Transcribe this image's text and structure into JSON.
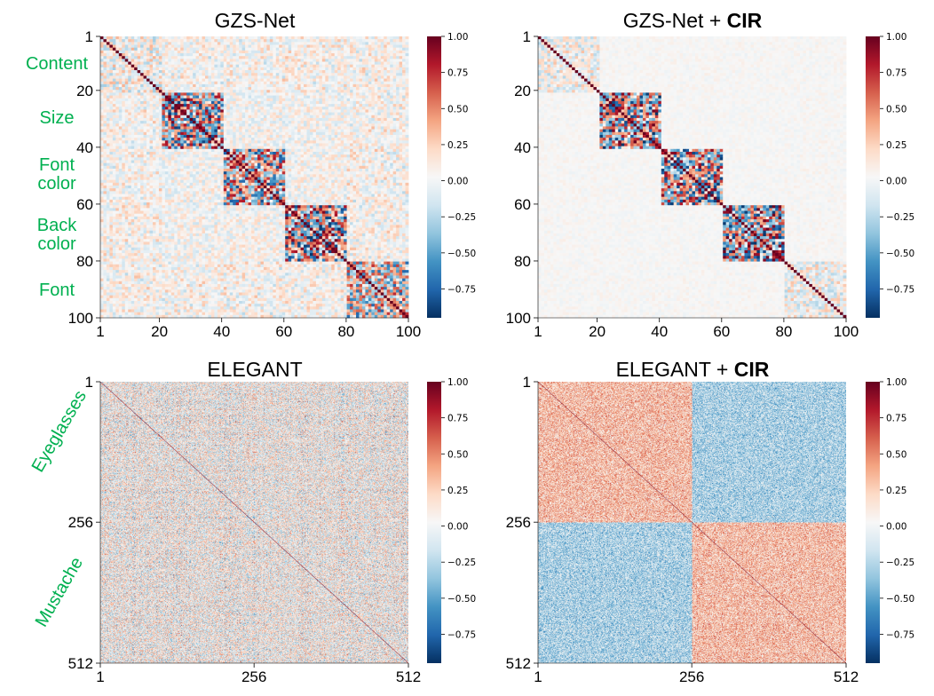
{
  "chart_data": [
    {
      "type": "heatmap",
      "title": "GZS-Net",
      "title_bold": "",
      "matrix_size": 100,
      "x_ticks": [
        "1",
        "20",
        "40",
        "60",
        "80",
        "100"
      ],
      "y_ticks": [
        "1",
        "20",
        "40",
        "60",
        "80",
        "100"
      ],
      "group_labels": [
        "Content",
        "Size",
        "Font color",
        "Back color",
        "Font"
      ],
      "colorbar_ticks": [
        "1.00",
        "0.75",
        "0.50",
        "0.25",
        "0.00",
        "−0.25",
        "−0.50",
        "−0.75"
      ],
      "vmin": -1.0,
      "vmax": 1.0
    },
    {
      "type": "heatmap",
      "title": "GZS-Net + ",
      "title_bold": "CIR",
      "matrix_size": 100,
      "x_ticks": [
        "1",
        "20",
        "40",
        "60",
        "80",
        "100"
      ],
      "y_ticks": [
        "1",
        "20",
        "40",
        "60",
        "80",
        "100"
      ],
      "colorbar_ticks": [
        "1.00",
        "0.75",
        "0.50",
        "0.25",
        "0.00",
        "−0.25",
        "−0.50",
        "−0.75"
      ],
      "vmin": -1.0,
      "vmax": 1.0
    },
    {
      "type": "heatmap",
      "title": "ELEGANT",
      "title_bold": "",
      "matrix_size": 512,
      "x_ticks": [
        "1",
        "256",
        "512"
      ],
      "y_ticks": [
        "1",
        "256",
        "512"
      ],
      "group_labels": [
        "Eyeglasses",
        "Mustache"
      ],
      "colorbar_ticks": [
        "1.00",
        "0.75",
        "0.50",
        "0.25",
        "0.00",
        "−0.25",
        "−0.50",
        "−0.75"
      ],
      "vmin": -1.0,
      "vmax": 1.0
    },
    {
      "type": "heatmap",
      "title": "ELEGANT + ",
      "title_bold": "CIR",
      "matrix_size": 512,
      "x_ticks": [
        "1",
        "256",
        "512"
      ],
      "y_ticks": [
        "1",
        "256",
        "512"
      ],
      "colorbar_ticks": [
        "1.00",
        "0.75",
        "0.50",
        "0.25",
        "0.00",
        "−0.25",
        "−0.50",
        "−0.75"
      ],
      "vmin": -1.0,
      "vmax": 1.0
    }
  ],
  "colors": {
    "cmap": [
      "#053061",
      "#2166ac",
      "#4393c3",
      "#92c5de",
      "#d1e5f0",
      "#f7f7f7",
      "#fddbc7",
      "#f4a582",
      "#d6604d",
      "#b2182b",
      "#67001f"
    ],
    "label_green": "#00b050"
  }
}
